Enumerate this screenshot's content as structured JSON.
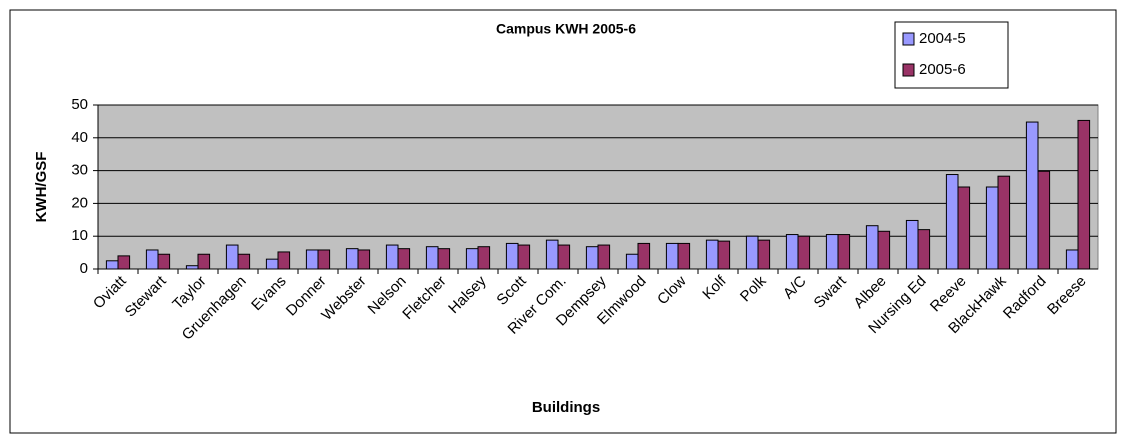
{
  "chart_data": {
    "type": "bar",
    "title": "Campus KWH 2005-6",
    "xlabel": "Buildings",
    "ylabel": "KWH/GSF",
    "categories": [
      "Oviatt",
      "Stewart",
      "Taylor",
      "Gruenhagen",
      "Evans",
      "Donner",
      "Webster",
      "Nelson",
      "Fletcher",
      "Halsey",
      "Scott",
      "River Com.",
      "Dempsey",
      "Elmwood",
      "Clow",
      "Kolf",
      "Polk",
      "A/C",
      "Swart",
      "Albee",
      "Nursing Ed",
      "Reeve",
      "BlackHawk",
      "Radford",
      "Breese"
    ],
    "series": [
      {
        "name": "2004-5",
        "color": "#9999ff",
        "values": [
          2.5,
          5.8,
          1,
          7.3,
          3,
          5.8,
          6.2,
          7.3,
          6.8,
          6.2,
          7.8,
          8.8,
          6.8,
          4.5,
          7.8,
          8.8,
          10,
          10.5,
          10.5,
          13.2,
          14.8,
          28.8,
          25,
          44.8,
          5.8
        ]
      },
      {
        "name": "2005-6",
        "color": "#993366",
        "values": [
          4,
          4.5,
          4.5,
          4.5,
          5.2,
          5.8,
          5.8,
          6.2,
          6.2,
          6.8,
          7.3,
          7.3,
          7.3,
          7.8,
          7.8,
          8.5,
          8.8,
          10,
          10.5,
          11.5,
          12,
          25,
          28.3,
          29.8,
          45.3
        ]
      }
    ],
    "ylim": [
      0,
      50
    ],
    "yticks": [
      0,
      10,
      20,
      30,
      40,
      50
    ],
    "grid": true,
    "legend": "top-right"
  }
}
